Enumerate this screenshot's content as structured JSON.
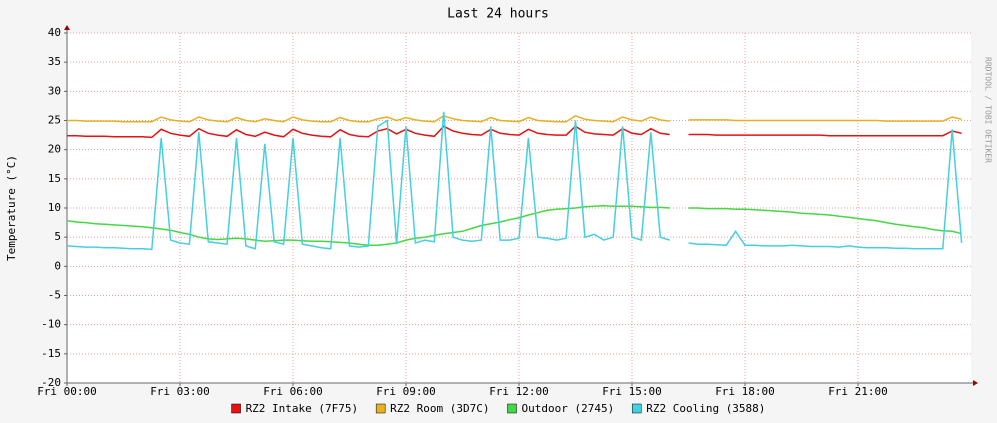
{
  "chart_data": {
    "type": "line",
    "title": "Last 24 hours",
    "y_label": "Temperature (°C)",
    "watermark": "RRDTOOL / TOBI OETIKER",
    "x": [
      0,
      0.25,
      0.5,
      0.75,
      1,
      1.25,
      1.5,
      1.75,
      2,
      2.25,
      2.5,
      2.75,
      3,
      3.25,
      3.5,
      3.75,
      4,
      4.25,
      4.5,
      4.75,
      5,
      5.25,
      5.5,
      5.75,
      6,
      6.25,
      6.5,
      6.75,
      7,
      7.25,
      7.5,
      7.75,
      8,
      8.25,
      8.5,
      8.75,
      9,
      9.25,
      9.5,
      9.75,
      10,
      10.25,
      10.5,
      10.75,
      11,
      11.25,
      11.5,
      11.75,
      12,
      12.25,
      12.5,
      12.75,
      13,
      13.25,
      13.5,
      13.75,
      14,
      14.25,
      14.5,
      14.75,
      15,
      15.25,
      15.5,
      15.75,
      16,
      16.25,
      16.5,
      16.75,
      17,
      17.25,
      17.5,
      17.75,
      18,
      18.25,
      18.5,
      18.75,
      19,
      19.25,
      19.5,
      19.75,
      20,
      20.25,
      20.5,
      20.75,
      21,
      21.25,
      21.5,
      21.75,
      22,
      22.25,
      22.5,
      22.75,
      23,
      23.25,
      23.5,
      23.75
    ],
    "series": [
      {
        "name": "RZ2 Intake (7F75)",
        "color": "#e81010",
        "values": [
          22.4,
          22.4,
          22.3,
          22.3,
          22.3,
          22.2,
          22.2,
          22.2,
          22.2,
          22.1,
          23.5,
          22.8,
          22.5,
          22.3,
          23.6,
          22.8,
          22.5,
          22.3,
          23.4,
          22.6,
          22.3,
          23.0,
          22.5,
          22.2,
          23.5,
          22.8,
          22.5,
          22.3,
          22.2,
          23.4,
          22.6,
          22.3,
          22.2,
          23.2,
          23.6,
          22.7,
          23.5,
          22.8,
          22.5,
          22.3,
          24.0,
          23.2,
          22.8,
          22.6,
          22.5,
          23.5,
          22.8,
          22.6,
          22.5,
          23.5,
          22.8,
          22.6,
          22.5,
          22.5,
          24.0,
          23.0,
          22.7,
          22.6,
          22.5,
          23.6,
          22.8,
          22.6,
          23.6,
          22.8,
          22.6,
          null,
          22.6,
          22.6,
          22.6,
          22.5,
          22.5,
          22.5,
          22.5,
          22.5,
          22.5,
          22.5,
          22.5,
          22.5,
          22.5,
          22.5,
          22.5,
          22.4,
          22.4,
          22.4,
          22.4,
          22.4,
          22.4,
          22.4,
          22.4,
          22.4,
          22.4,
          22.4,
          22.4,
          22.4,
          23.2,
          22.8
        ]
      },
      {
        "name": "RZ2 Room (3D7C)",
        "color": "#e8b020",
        "values": [
          25.0,
          25.0,
          24.9,
          24.9,
          24.9,
          24.9,
          24.8,
          24.8,
          24.8,
          24.8,
          25.6,
          25.1,
          24.9,
          24.8,
          25.6,
          25.1,
          24.9,
          24.8,
          25.5,
          25.0,
          24.8,
          25.3,
          25.0,
          24.8,
          25.6,
          25.1,
          24.9,
          24.8,
          24.8,
          25.5,
          25.0,
          24.8,
          24.8,
          25.3,
          25.6,
          25.0,
          25.5,
          25.1,
          24.9,
          24.8,
          25.8,
          25.3,
          25.0,
          24.9,
          24.8,
          25.5,
          25.0,
          24.9,
          24.8,
          25.5,
          25.0,
          24.9,
          24.8,
          24.8,
          25.8,
          25.2,
          25.0,
          24.9,
          24.8,
          25.6,
          25.1,
          24.9,
          25.6,
          25.1,
          24.9,
          null,
          25.1,
          25.1,
          25.1,
          25.1,
          25.1,
          25.0,
          25.0,
          25.0,
          25.0,
          25.0,
          25.0,
          25.0,
          25.0,
          25.0,
          25.0,
          25.0,
          25.0,
          25.0,
          25.0,
          25.0,
          25.0,
          24.9,
          24.9,
          24.9,
          24.9,
          24.9,
          24.9,
          24.9,
          25.6,
          25.2
        ]
      },
      {
        "name": "Outdoor (2745)",
        "color": "#44d844",
        "values": [
          7.8,
          7.6,
          7.5,
          7.3,
          7.2,
          7.1,
          7.0,
          6.9,
          6.8,
          6.6,
          6.4,
          6.2,
          5.8,
          5.5,
          5.0,
          4.7,
          4.6,
          4.7,
          4.8,
          4.7,
          4.5,
          4.3,
          4.4,
          4.5,
          4.5,
          4.4,
          4.3,
          4.3,
          4.2,
          4.1,
          4.0,
          3.8,
          3.6,
          3.6,
          3.8,
          4.0,
          4.5,
          4.8,
          5.0,
          5.3,
          5.6,
          5.8,
          6.0,
          6.5,
          7.0,
          7.3,
          7.6,
          8.0,
          8.3,
          8.8,
          9.2,
          9.6,
          9.8,
          9.9,
          10.0,
          10.2,
          10.3,
          10.4,
          10.3,
          10.3,
          10.3,
          10.2,
          10.1,
          10.1,
          10.0,
          null,
          10.0,
          10.0,
          9.9,
          9.9,
          9.9,
          9.8,
          9.8,
          9.7,
          9.6,
          9.5,
          9.4,
          9.3,
          9.1,
          9.0,
          8.9,
          8.8,
          8.6,
          8.4,
          8.2,
          8.0,
          7.8,
          7.5,
          7.2,
          7.0,
          6.8,
          6.6,
          6.3,
          6.1,
          6.0,
          5.6
        ]
      },
      {
        "name": "RZ2 Cooling (3588)",
        "color": "#44d0e0",
        "values": [
          3.5,
          3.4,
          3.3,
          3.3,
          3.2,
          3.2,
          3.1,
          3.0,
          3.0,
          2.9,
          22,
          4.5,
          4.0,
          3.8,
          23,
          4.2,
          4.0,
          3.8,
          22,
          3.5,
          3.0,
          21,
          4.2,
          3.8,
          22,
          3.8,
          3.5,
          3.2,
          3.0,
          22,
          3.5,
          3.3,
          3.5,
          24,
          25,
          3.8,
          24,
          4.0,
          4.5,
          4.2,
          26.5,
          5.0,
          4.5,
          4.3,
          4.5,
          24,
          4.5,
          4.5,
          4.8,
          22,
          5.0,
          4.8,
          4.5,
          4.8,
          25,
          5.0,
          5.5,
          4.5,
          5.0,
          24,
          5.0,
          4.5,
          23,
          5.0,
          4.5,
          null,
          4.0,
          3.8,
          3.8,
          3.7,
          3.6,
          6.0,
          3.6,
          3.6,
          3.5,
          3.5,
          3.5,
          3.6,
          3.5,
          3.4,
          3.4,
          3.4,
          3.3,
          3.5,
          3.3,
          3.2,
          3.2,
          3.2,
          3.1,
          3.1,
          3.0,
          3.0,
          3.0,
          3.0,
          23.5,
          4.0
        ]
      }
    ],
    "xlim": [
      0,
      24
    ],
    "xticks": [
      {
        "value": 0,
        "label": "Fri 00:00"
      },
      {
        "value": 3,
        "label": "Fri 03:00"
      },
      {
        "value": 6,
        "label": "Fri 06:00"
      },
      {
        "value": 9,
        "label": "Fri 09:00"
      },
      {
        "value": 12,
        "label": "Fri 12:00"
      },
      {
        "value": 15,
        "label": "Fri 15:00"
      },
      {
        "value": 18,
        "label": "Fri 18:00"
      },
      {
        "value": 21,
        "label": "Fri 21:00"
      }
    ],
    "ylim": [
      -20,
      40
    ],
    "yticks": [
      -20,
      -15,
      -10,
      -5,
      0,
      5,
      10,
      15,
      20,
      25,
      30,
      35,
      40
    ],
    "grid": true
  }
}
